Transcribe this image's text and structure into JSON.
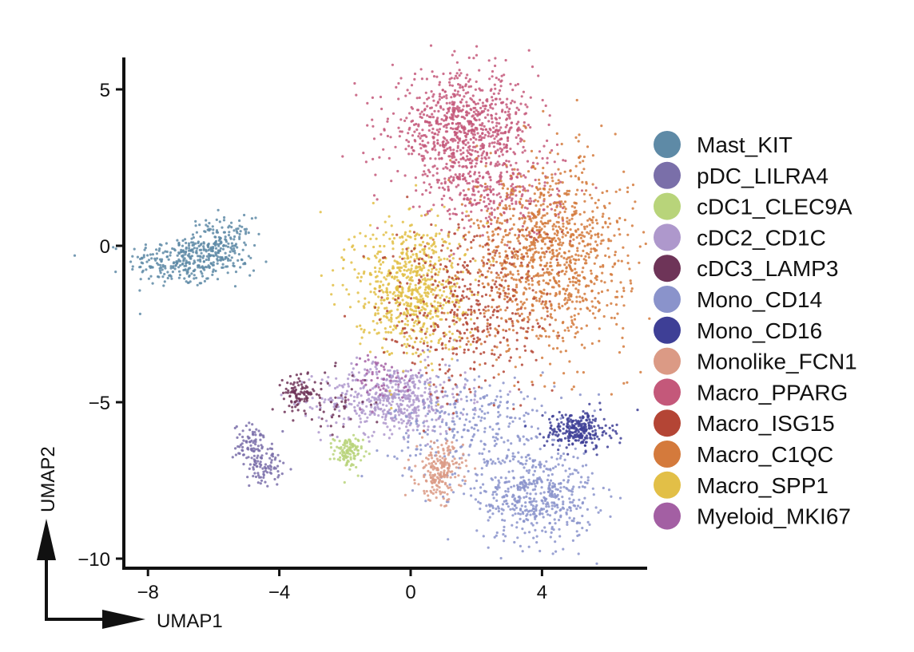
{
  "chart_data": {
    "type": "scatter",
    "title": "",
    "xlabel": "UMAP1",
    "ylabel": "UMAP2",
    "xlim": [
      -8.9,
      7.1
    ],
    "ylim": [
      -10.3,
      6.0
    ],
    "xticks": [
      -8,
      -4,
      0,
      4
    ],
    "xtick_labels": [
      "−8",
      "−4",
      "0",
      "4"
    ],
    "yticks": [
      5,
      0,
      -5,
      -10
    ],
    "ytick_labels": [
      "5",
      "0",
      "−5",
      "−10"
    ],
    "grid": false,
    "legend_position": "right",
    "series": [
      {
        "name": "Mast_KIT",
        "color": "#5e8aa6",
        "clusters": [
          {
            "cx": -7.0,
            "cy": -0.5,
            "sx": 0.8,
            "sy": 0.4,
            "n": 260
          },
          {
            "cx": -5.8,
            "cy": 0.0,
            "sx": 0.5,
            "sy": 0.45,
            "n": 200
          }
        ]
      },
      {
        "name": "pDC_LILRA4",
        "color": "#7a6fa9",
        "clusters": [
          {
            "cx": -4.8,
            "cy": -6.4,
            "sx": 0.3,
            "sy": 0.35,
            "n": 90
          },
          {
            "cx": -4.4,
            "cy": -7.1,
            "sx": 0.25,
            "sy": 0.3,
            "n": 70
          }
        ]
      },
      {
        "name": "cDC1_CLEC9A",
        "color": "#b8d47a",
        "clusters": [
          {
            "cx": -1.9,
            "cy": -6.6,
            "sx": 0.22,
            "sy": 0.25,
            "n": 110
          }
        ]
      },
      {
        "name": "cDC2_CD1C",
        "color": "#ae98cc",
        "clusters": [
          {
            "cx": -0.5,
            "cy": -4.9,
            "sx": 1.1,
            "sy": 0.55,
            "n": 520
          }
        ]
      },
      {
        "name": "cDC3_LAMP3",
        "color": "#6e3458",
        "clusters": [
          {
            "cx": -3.4,
            "cy": -4.7,
            "sx": 0.25,
            "sy": 0.25,
            "n": 90
          },
          {
            "cx": -2.4,
            "cy": -5.0,
            "sx": 0.6,
            "sy": 0.5,
            "n": 50
          }
        ]
      },
      {
        "name": "Mono_CD14",
        "color": "#8a93cb",
        "clusters": [
          {
            "cx": 3.8,
            "cy": -8.0,
            "sx": 0.9,
            "sy": 0.75,
            "n": 480
          },
          {
            "cx": 2.0,
            "cy": -5.8,
            "sx": 1.3,
            "sy": 0.9,
            "n": 300
          }
        ]
      },
      {
        "name": "Mono_CD16",
        "color": "#3e3f96",
        "clusters": [
          {
            "cx": 5.1,
            "cy": -5.9,
            "sx": 0.5,
            "sy": 0.3,
            "n": 260
          }
        ]
      },
      {
        "name": "Monolike_FCN1",
        "color": "#db9a85",
        "clusters": [
          {
            "cx": 0.9,
            "cy": -7.2,
            "sx": 0.35,
            "sy": 0.45,
            "n": 200
          }
        ]
      },
      {
        "name": "Macro_PPARG",
        "color": "#c4587a",
        "clusters": [
          {
            "cx": 1.6,
            "cy": 3.7,
            "sx": 1.1,
            "sy": 0.9,
            "n": 850
          },
          {
            "cx": 2.6,
            "cy": 1.6,
            "sx": 1.0,
            "sy": 0.7,
            "n": 250
          }
        ]
      },
      {
        "name": "Macro_C1QC",
        "color": "#d47a3c",
        "clusters": [
          {
            "cx": 4.2,
            "cy": -0.3,
            "sx": 1.2,
            "sy": 1.5,
            "n": 1100
          }
        ]
      },
      {
        "name": "Macro_SPP1",
        "color": "#e2bf47",
        "clusters": [
          {
            "cx": 0.0,
            "cy": -1.3,
            "sx": 0.85,
            "sy": 1.1,
            "n": 700
          }
        ]
      },
      {
        "name": "Macro_ISG15",
        "color": "#b44535",
        "clusters": [
          {
            "cx": 1.8,
            "cy": -2.0,
            "sx": 1.3,
            "sy": 1.4,
            "n": 450
          }
        ]
      },
      {
        "name": "Myeloid_MKI67",
        "color": "#a35fa3",
        "clusters": [
          {
            "cx": -0.8,
            "cy": -4.2,
            "sx": 0.5,
            "sy": 0.4,
            "n": 60
          }
        ]
      }
    ],
    "legend": [
      {
        "label": "Mast_KIT",
        "color": "#5e8aa6"
      },
      {
        "label": "pDC_LILRA4",
        "color": "#7a6fa9"
      },
      {
        "label": "cDC1_CLEC9A",
        "color": "#b8d47a"
      },
      {
        "label": "cDC2_CD1C",
        "color": "#ae98cc"
      },
      {
        "label": "cDC3_LAMP3",
        "color": "#6e3458"
      },
      {
        "label": "Mono_CD14",
        "color": "#8a93cb"
      },
      {
        "label": "Mono_CD16",
        "color": "#3e3f96"
      },
      {
        "label": "Monolike_FCN1",
        "color": "#db9a85"
      },
      {
        "label": "Macro_PPARG",
        "color": "#c4587a"
      },
      {
        "label": "Macro_ISG15",
        "color": "#b44535"
      },
      {
        "label": "Macro_C1QC",
        "color": "#d47a3c"
      },
      {
        "label": "Macro_SPP1",
        "color": "#e2bf47"
      },
      {
        "label": "Myeloid_MKI67",
        "color": "#a35fa3"
      }
    ]
  }
}
